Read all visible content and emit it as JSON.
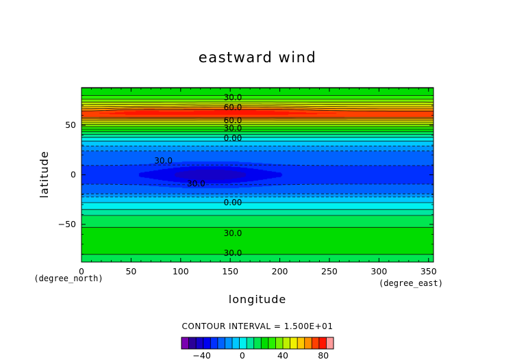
{
  "chart_data": {
    "type": "heatmap",
    "title": "eastward wind",
    "xlabel": "longitude",
    "ylabel": "latitude",
    "x_unit": "(degree_east)",
    "y_unit": "(degree_north)",
    "xlim": [
      0,
      355
    ],
    "ylim": [
      -88,
      88
    ],
    "x_ticks": [
      0,
      50,
      100,
      150,
      200,
      250,
      300,
      350
    ],
    "y_ticks": [
      -50,
      0,
      50
    ],
    "contour_interval_text": "CONTOUR INTERVAL = 1.500E+01",
    "contour_labels": [
      {
        "text": "30.0",
        "lon": 125,
        "lat": 78
      },
      {
        "text": "60.0",
        "lon": 125,
        "lat": 68
      },
      {
        "text": "60.0",
        "lon": 125,
        "lat": 55
      },
      {
        "text": "30.0",
        "lon": 125,
        "lat": 47
      },
      {
        "text": "0.00",
        "lon": 125,
        "lat": 37
      },
      {
        "text": "30.0",
        "lon": 55,
        "lat": 14
      },
      {
        "text": "30.0",
        "lon": 88,
        "lat": -9
      },
      {
        "text": "0.00",
        "lon": 125,
        "lat": -28
      },
      {
        "text": "30.0",
        "lon": 125,
        "lat": -59
      },
      {
        "text": "30.0",
        "lon": 125,
        "lat": -79
      }
    ],
    "levels": [
      -60,
      -52.5,
      -45,
      -37.5,
      -30,
      -22.5,
      -15,
      -7.5,
      0,
      7.5,
      15,
      22.5,
      30,
      37.5,
      45,
      52.5,
      60,
      67.5,
      75,
      82.5,
      90
    ],
    "colors": [
      "#7a00b0",
      "#2a0098",
      "#1400c8",
      "#0000f0",
      "#0030ff",
      "#0062ff",
      "#0094ff",
      "#00c8ff",
      "#00f0f0",
      "#00e6a0",
      "#00e650",
      "#00dc00",
      "#28f000",
      "#78f000",
      "#bef000",
      "#f0f000",
      "#ffc800",
      "#ff9000",
      "#ff4000",
      "#ff1400",
      "#ff9c9c"
    ],
    "colorbar_ticks": [
      -40,
      0,
      40,
      80
    ],
    "zonal_profile": {
      "lat": [
        88,
        80,
        75,
        70,
        66,
        62,
        58,
        54,
        50,
        46,
        42,
        38,
        34,
        30,
        26,
        22,
        18,
        14,
        10,
        6,
        2,
        -2,
        -6,
        -10,
        -14,
        -18,
        -22,
        -26,
        -30,
        -34,
        -38,
        -42,
        -46,
        -50,
        -56,
        -62,
        -70,
        -78,
        -84,
        -88
      ],
      "u": [
        22,
        30,
        40,
        55,
        70,
        82,
        75,
        55,
        42,
        30,
        18,
        8,
        0,
        -6,
        -12,
        -18,
        -20,
        -20,
        -22,
        -25,
        -28,
        -28,
        -25,
        -22,
        -20,
        -18,
        -8,
        -2,
        2,
        6,
        12,
        16,
        18,
        20,
        25,
        27,
        28,
        24,
        20,
        18
      ]
    },
    "anomalies": [
      {
        "lon": 130,
        "lat": 0,
        "dlon": 50,
        "dlat": 10,
        "amp": -16,
        "hatched": true
      },
      {
        "lon": 155,
        "lat": 65,
        "dlon": 70,
        "dlat": 5,
        "amp": 10,
        "hatched": false
      },
      {
        "lon": 60,
        "lat": 64,
        "dlon": 30,
        "dlat": 4,
        "amp": 6,
        "hatched": false
      }
    ]
  }
}
